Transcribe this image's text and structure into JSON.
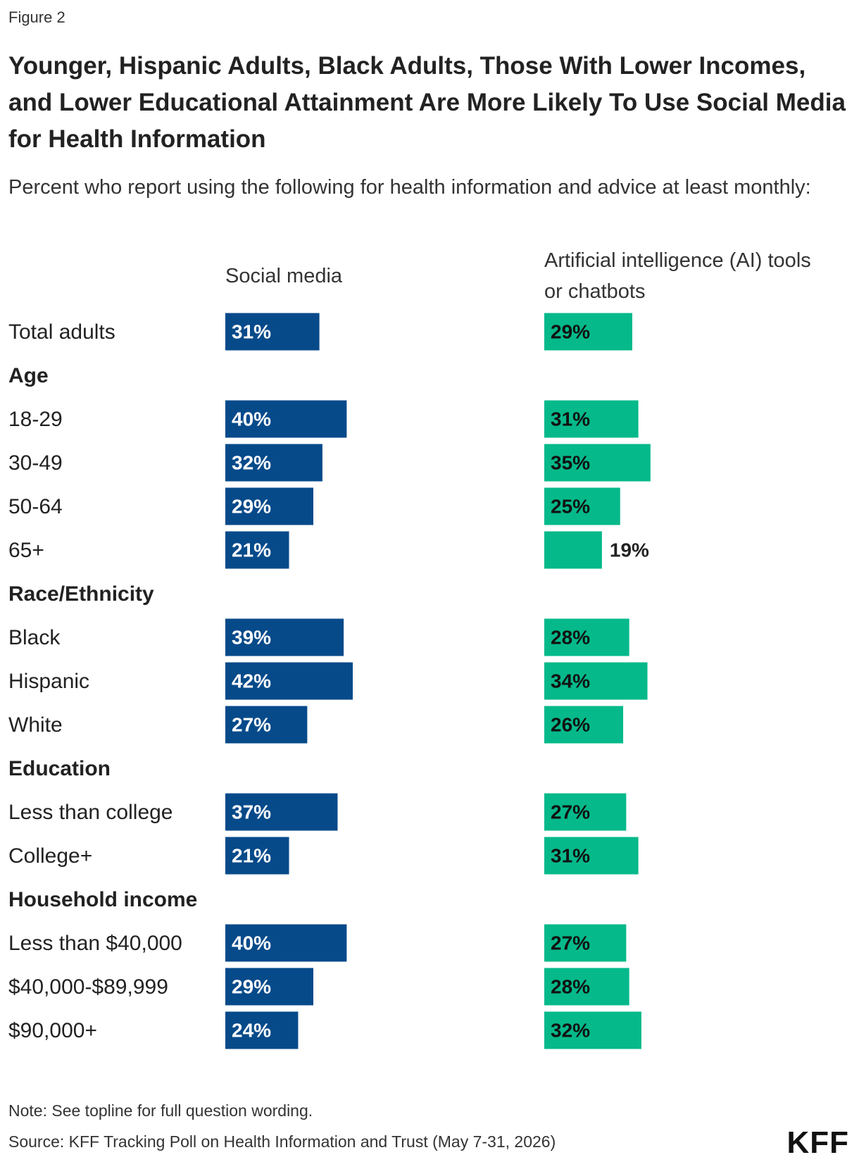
{
  "figure_label": "Figure 2",
  "chart_data": {
    "type": "bar",
    "title": "Younger, Hispanic Adults, Black Adults, Those With Lower Incomes, and Lower Educational Attainment Are More Likely To Use Social Media for Health Information",
    "subtitle": "Percent who report using the following for health information and advice at least monthly:",
    "categories": [
      "Total adults",
      "Age",
      "18-29",
      "30-49",
      "50-64",
      "65+",
      "Race/Ethnicity",
      "Black",
      "Hispanic",
      "White",
      "Education",
      "Less than college",
      "College+",
      "Household income",
      "Less than $40,000",
      "$40,000-$89,999",
      "$90,000+"
    ],
    "series": [
      {
        "name": "Social media",
        "color": "#064a8a",
        "values": [
          31,
          null,
          40,
          32,
          29,
          21,
          null,
          39,
          42,
          27,
          null,
          37,
          21,
          null,
          40,
          29,
          24
        ],
        "value_labels": [
          "31%",
          null,
          "40%",
          "32%",
          "29%",
          "21%",
          null,
          "39%",
          "42%",
          "27%",
          null,
          "37%",
          "21%",
          null,
          "40%",
          "29%",
          "24%"
        ]
      },
      {
        "name": "Artificial intelligence (AI) tools or chatbots",
        "color": "#05b98a",
        "values": [
          29,
          null,
          31,
          35,
          25,
          19,
          null,
          28,
          34,
          26,
          null,
          27,
          31,
          null,
          27,
          28,
          32
        ],
        "value_labels": [
          "29%",
          null,
          "31%",
          "35%",
          "25%",
          "19%",
          null,
          "28%",
          "34%",
          "26%",
          null,
          "27%",
          "31%",
          null,
          "27%",
          "28%",
          "32%"
        ]
      }
    ],
    "note": "Note: See topline for full question wording.",
    "source": "Source: KFF Tracking Poll on Health Information and Trust (May 7-31, 2026)"
  },
  "logo": "KFF"
}
